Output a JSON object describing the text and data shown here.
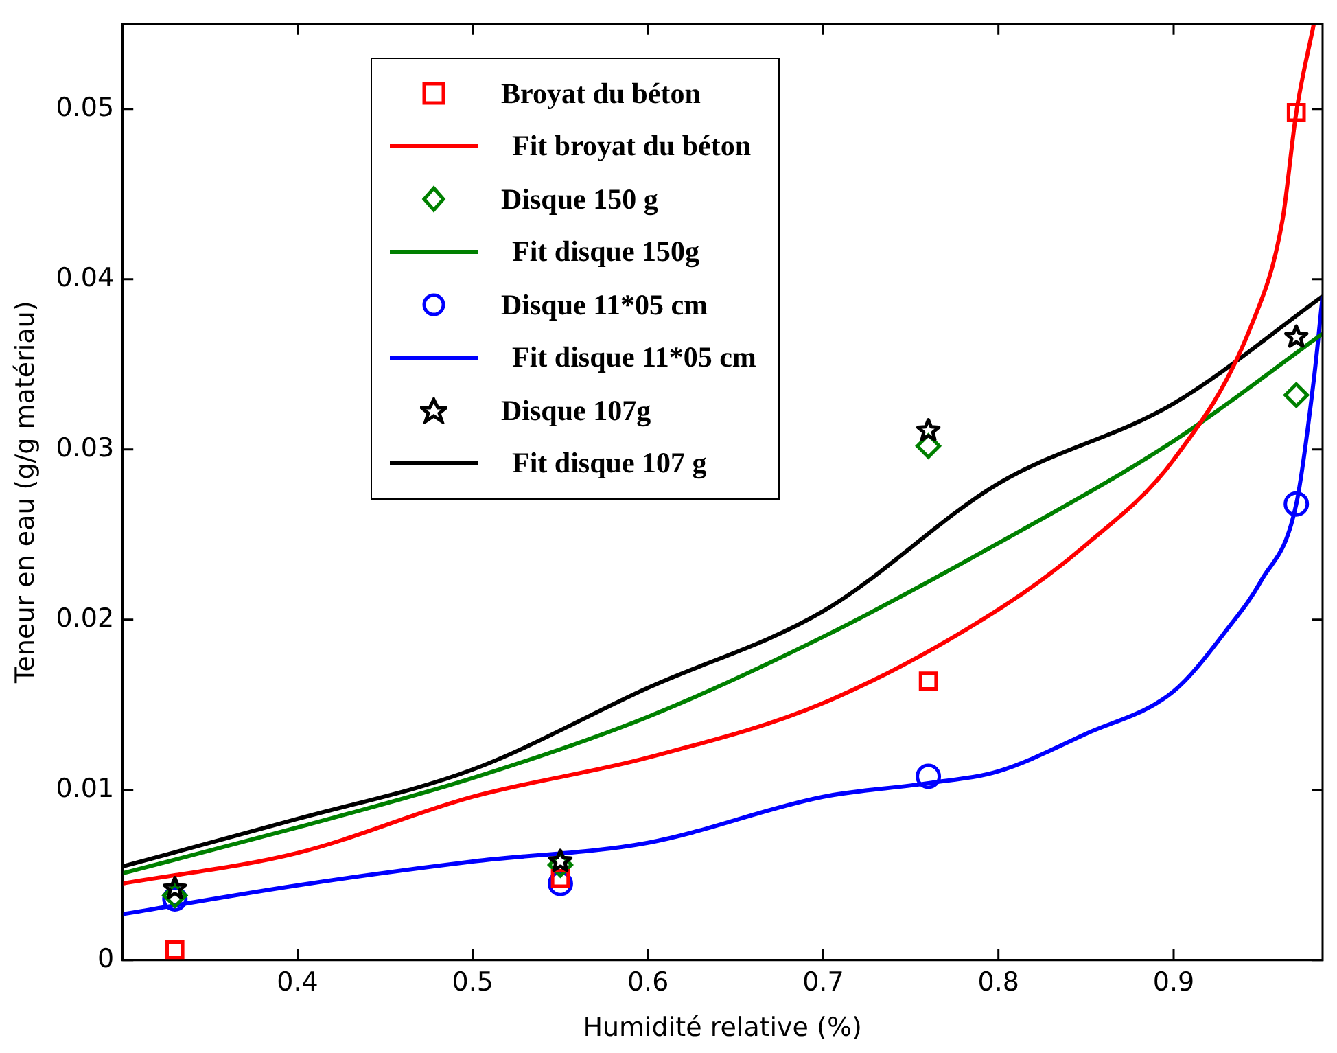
{
  "chart_data": {
    "type": "scatter",
    "xlabel": "Humidité relative (%)",
    "ylabel": "Teneur en eau (g/g matériau)",
    "xlim": [
      0.3,
      0.985
    ],
    "xticks": [
      0.4,
      0.5,
      0.6,
      0.7,
      0.8,
      0.9
    ],
    "ylim": [
      0,
      0.055
    ],
    "yticks": [
      0,
      0.01,
      0.02,
      0.03,
      0.04,
      0.05
    ],
    "grid": false,
    "legend": "top",
    "x": [
      0.33,
      0.55,
      0.76,
      0.97
    ],
    "series": [
      {
        "name": "Broyat du béton",
        "marker": "square",
        "color": "#ff0000",
        "values": [
          0.0006,
          0.0048,
          0.0164,
          0.0498
        ]
      },
      {
        "name": "Fit broyat du béton",
        "type": "line",
        "marker": "none",
        "line_style": "solid",
        "color": "#ff0000",
        "x": [
          0.3,
          0.4,
          0.5,
          0.6,
          0.7,
          0.8,
          0.85,
          0.9,
          0.944,
          0.962,
          0.97,
          0.98
        ],
        "values": [
          0.0045,
          0.0063,
          0.0096,
          0.0119,
          0.0151,
          0.0206,
          0.0244,
          0.0294,
          0.0372,
          0.0434,
          0.0498,
          0.055
        ]
      },
      {
        "name": "Disque 150 g",
        "marker": "diamond",
        "color": "#008000",
        "values": [
          0.0038,
          0.0056,
          0.0302,
          0.0332
        ]
      },
      {
        "name": "Fit disque 150g",
        "type": "line",
        "marker": "none",
        "line_style": "solid",
        "color": "#008000",
        "x": [
          0.3,
          0.4,
          0.5,
          0.6,
          0.7,
          0.8,
          0.9,
          0.985
        ],
        "values": [
          0.0051,
          0.0078,
          0.0107,
          0.0143,
          0.019,
          0.0245,
          0.0305,
          0.0368
        ]
      },
      {
        "name": "Disque 11*05 cm",
        "marker": "circle",
        "color": "#0000ff",
        "values": [
          0.0036,
          0.0045,
          0.0108,
          0.0268
        ]
      },
      {
        "name": "Fit disque 11*05 cm",
        "type": "line",
        "marker": "none",
        "line_style": "solid",
        "color": "#0000ff",
        "x": [
          0.3,
          0.4,
          0.5,
          0.6,
          0.7,
          0.76,
          0.8,
          0.85,
          0.9,
          0.931,
          0.95,
          0.97,
          0.98,
          0.985
        ],
        "values": [
          0.0027,
          0.0044,
          0.0058,
          0.0069,
          0.0096,
          0.0104,
          0.0111,
          0.0133,
          0.0158,
          0.0195,
          0.0223,
          0.0268,
          0.0341,
          0.039
        ]
      },
      {
        "name": "Disque 107g",
        "marker": "star",
        "color": "#000000",
        "values": [
          0.0042,
          0.0058,
          0.0311,
          0.0366
        ]
      },
      {
        "name": "Fit disque 107 g",
        "type": "line",
        "marker": "none",
        "line_style": "solid",
        "color": "#000000",
        "x": [
          0.3,
          0.4,
          0.5,
          0.6,
          0.7,
          0.8,
          0.9,
          0.985
        ],
        "values": [
          0.0055,
          0.0083,
          0.0112,
          0.016,
          0.0205,
          0.028,
          0.0327,
          0.039
        ]
      }
    ]
  }
}
